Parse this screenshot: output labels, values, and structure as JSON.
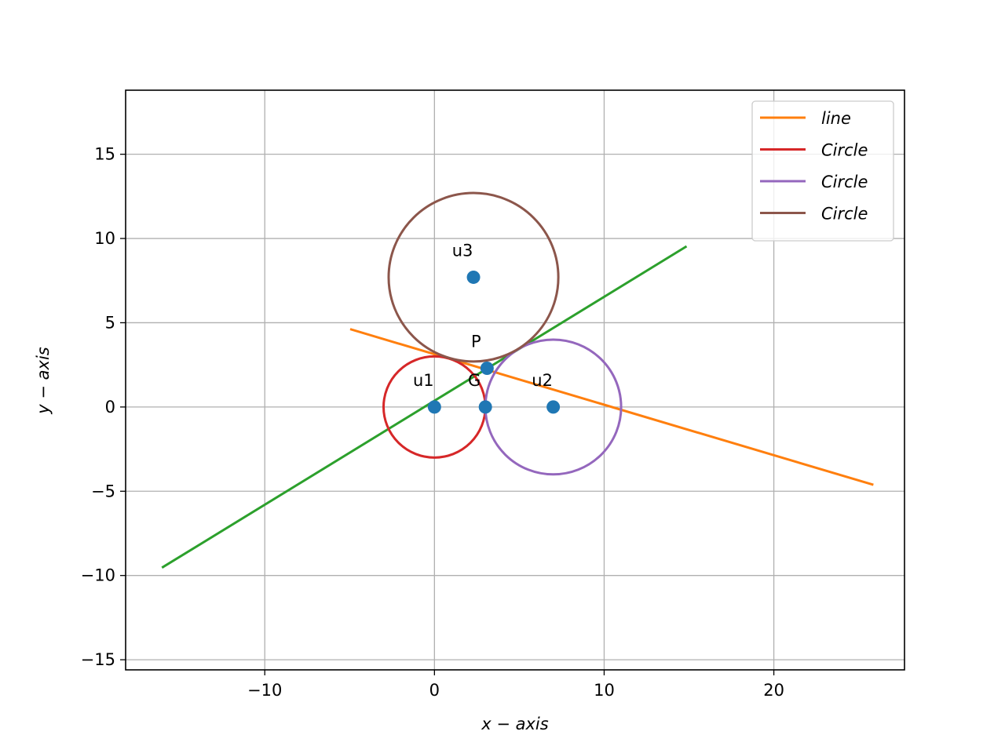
{
  "chart_data": {
    "type": "line",
    "xlabel": "x − axis",
    "ylabel": "y − axis",
    "xlim": [
      -18.2,
      27.7
    ],
    "ylim": [
      -15.6,
      18.8
    ],
    "grid": true,
    "legend_position": "top-right",
    "x_ticks": [
      {
        "value": -10,
        "label": "−10"
      },
      {
        "value": 0,
        "label": "0"
      },
      {
        "value": 10,
        "label": "10"
      },
      {
        "value": 20,
        "label": "20"
      }
    ],
    "y_ticks": [
      {
        "value": -15,
        "label": "−15"
      },
      {
        "value": -10,
        "label": "−10"
      },
      {
        "value": -5,
        "label": "−5"
      },
      {
        "value": 0,
        "label": "0"
      },
      {
        "value": 5,
        "label": "5"
      },
      {
        "value": 10,
        "label": "10"
      },
      {
        "value": 15,
        "label": "15"
      }
    ],
    "lines": [
      {
        "name": "line",
        "color": "#ff7f0e",
        "in_legend": true,
        "x": [
          -4.9,
          25.8
        ],
        "y": [
          4.6,
          -4.6
        ]
      },
      {
        "name": "",
        "color": "#2ca02c",
        "in_legend": false,
        "x": [
          -16.0,
          14.8
        ],
        "y": [
          -9.5,
          9.5
        ]
      }
    ],
    "circles": [
      {
        "name": "Circle",
        "color": "#d62728",
        "cx": 0,
        "cy": 0,
        "r": 3.0
      },
      {
        "name": "Circle",
        "color": "#9467bd",
        "cx": 7.0,
        "cy": 0,
        "r": 4.0
      },
      {
        "name": "Circle",
        "color": "#8c564b",
        "cx": 2.3,
        "cy": 7.7,
        "r": 5.0
      }
    ],
    "points": [
      {
        "x": 0,
        "y": 0
      },
      {
        "x": 7.0,
        "y": 0
      },
      {
        "x": 3.0,
        "y": 0
      },
      {
        "x": 2.3,
        "y": 7.7
      },
      {
        "x": 3.1,
        "y": 2.3
      }
    ],
    "point_color": "#1f77b4",
    "annotations": [
      {
        "text": "u1",
        "x": 0,
        "y": 0
      },
      {
        "text": "u2",
        "x": 7.0,
        "y": 0
      },
      {
        "text": "G",
        "x": 3.0,
        "y": 0
      },
      {
        "text": "u3",
        "x": 2.3,
        "y": 7.7
      },
      {
        "text": "P",
        "x": 3.1,
        "y": 2.3
      }
    ]
  }
}
